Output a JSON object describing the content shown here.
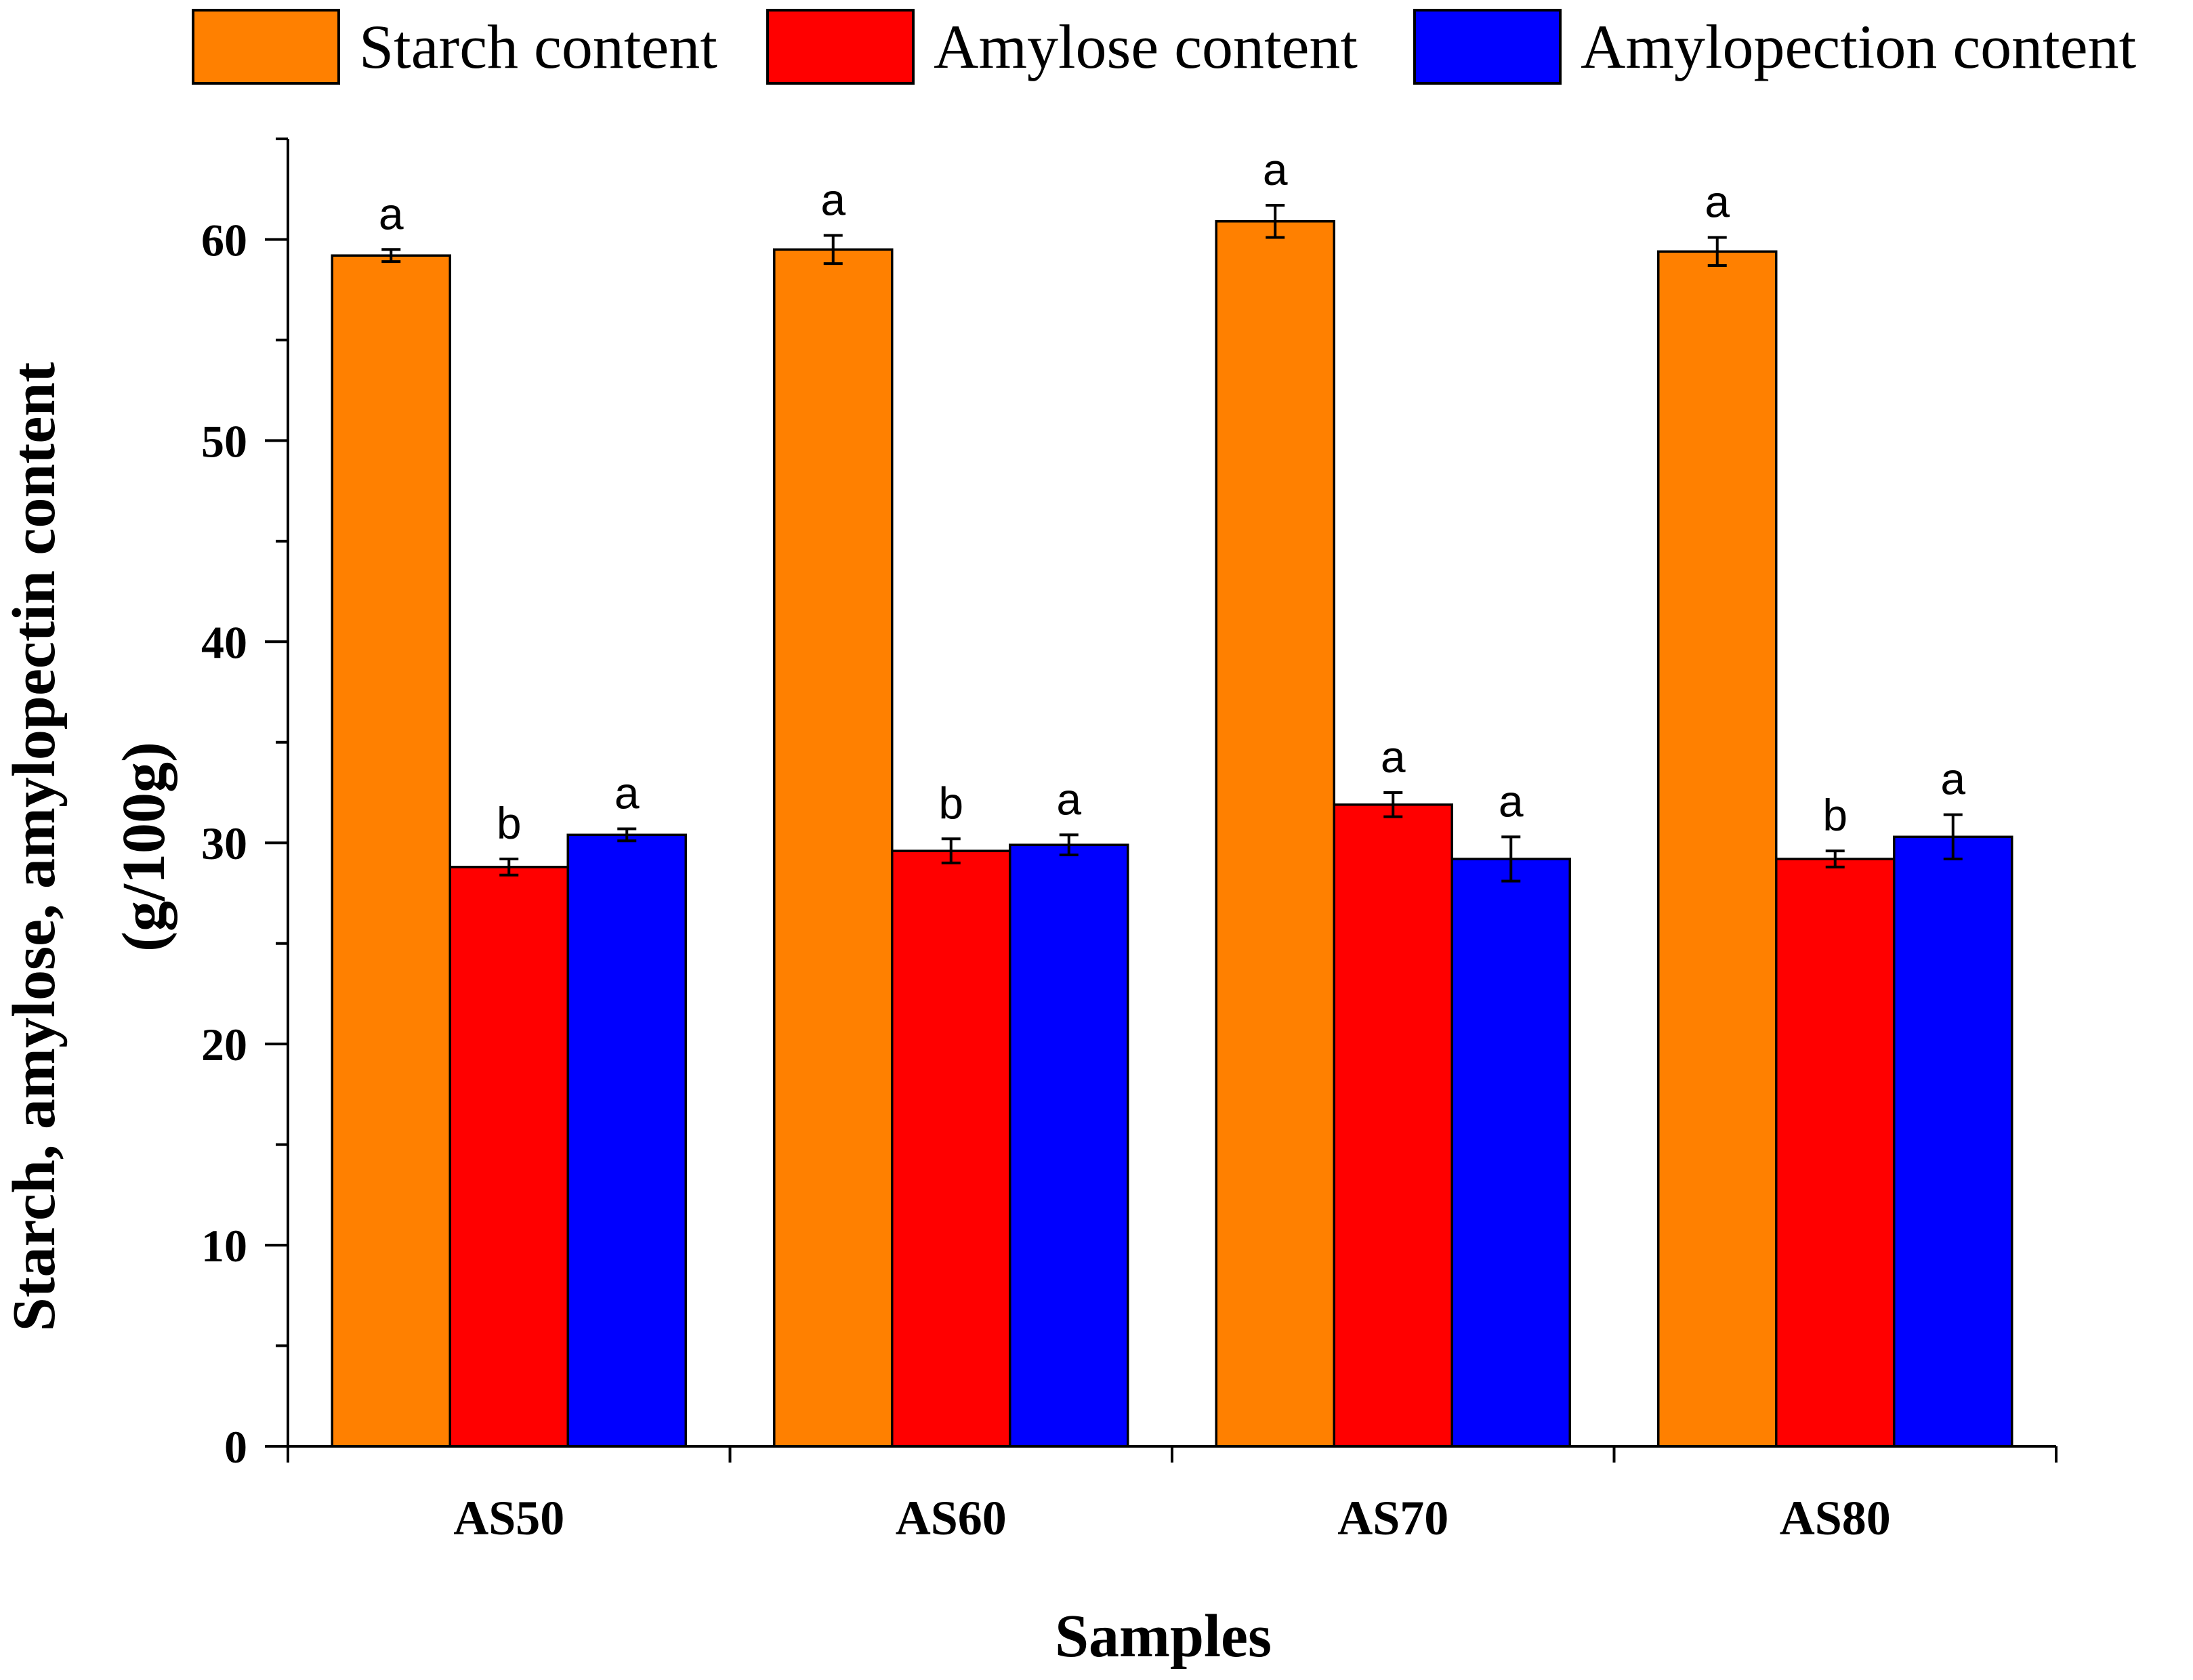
{
  "colors": {
    "starch": "#ff8000",
    "amylose": "#ff0000",
    "amylopectin": "#0000ff",
    "axis": "#000000"
  },
  "legend": {
    "items": [
      {
        "label": "Starch content",
        "color_key": "starch"
      },
      {
        "label": "Amylose content",
        "color_key": "amylose"
      },
      {
        "label": "Amylopection content",
        "color_key": "amylopectin"
      }
    ]
  },
  "chart_data": {
    "type": "bar",
    "title": "",
    "xlabel": "Samples",
    "ylabel_lines": [
      "Starch, amylose, amylopectin content",
      "(g/100g)"
    ],
    "ylim": [
      0,
      65
    ],
    "yticks": [
      0,
      10,
      20,
      30,
      40,
      50,
      60
    ],
    "categories": [
      "AS50",
      "AS60",
      "AS70",
      "AS80"
    ],
    "series": [
      {
        "name": "Starch content",
        "color_key": "starch",
        "values": [
          59.2,
          59.5,
          60.9,
          59.4
        ],
        "errors": [
          0.3,
          0.7,
          0.8,
          0.7
        ],
        "labels": [
          "a",
          "a",
          "a",
          "a"
        ]
      },
      {
        "name": "Amylose content",
        "color_key": "amylose",
        "values": [
          28.8,
          29.6,
          31.9,
          29.2
        ],
        "errors": [
          0.4,
          0.6,
          0.6,
          0.4
        ],
        "labels": [
          "b",
          "b",
          "a",
          "b"
        ]
      },
      {
        "name": "Amylopection content",
        "color_key": "amylopectin",
        "values": [
          30.4,
          29.9,
          29.2,
          30.3
        ],
        "errors": [
          0.3,
          0.5,
          1.1,
          1.1
        ],
        "labels": [
          "a",
          "a",
          "a",
          "a"
        ]
      }
    ]
  }
}
